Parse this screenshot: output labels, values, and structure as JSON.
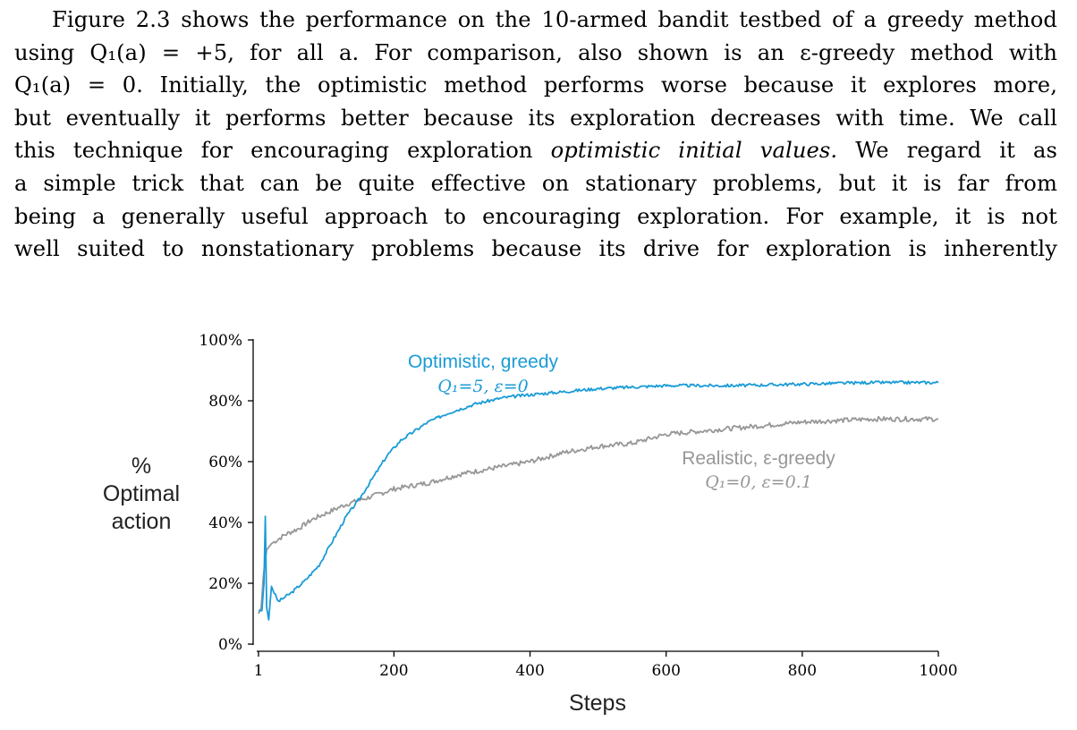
{
  "paragraph": {
    "lines": [
      "Figure 2.3 shows the performance on the 10-armed bandit testbed of a greedy method",
      "using Q₁(a) = +5, for all a. For comparison, also shown is an ε-greedy method with",
      "Q₁(a) = 0. Initially, the optimistic method performs worse because it explores more,",
      "but eventually it performs better because its exploration decreases with time. We call",
      "this technique for encouraging exploration ",
      "optimistic initial values.",
      " We regard it as",
      "a simple trick that can be quite effective on stationary problems, but it is far from",
      "being a generally useful approach to encouraging exploration. For example, it is not",
      "well suited to nonstationary problems because its drive for exploration is inherently"
    ]
  },
  "colors": {
    "optimistic": "#1a9bd7",
    "realistic": "#979797",
    "axis": "#000000"
  },
  "chart_data": {
    "type": "line",
    "xlabel": "Steps",
    "ylabel": [
      "%",
      "Optimal",
      "action"
    ],
    "xlim": [
      1,
      1000
    ],
    "ylim": [
      0,
      100
    ],
    "x_ticks": [
      "1",
      "200",
      "400",
      "600",
      "800",
      "1000"
    ],
    "y_ticks": [
      "0%",
      "20%",
      "40%",
      "60%",
      "80%",
      "100%"
    ],
    "grid": false,
    "series": [
      {
        "name": "Optimistic, greedy",
        "sublabel": "Q₁=5, ε=0",
        "points": [
          [
            1,
            11
          ],
          [
            6,
            11
          ],
          [
            9,
            20
          ],
          [
            11,
            42
          ],
          [
            13,
            12
          ],
          [
            16,
            8
          ],
          [
            20,
            19
          ],
          [
            30,
            14
          ],
          [
            50,
            17
          ],
          [
            70,
            21
          ],
          [
            90,
            26
          ],
          [
            110,
            34
          ],
          [
            130,
            42
          ],
          [
            150,
            48
          ],
          [
            170,
            55
          ],
          [
            190,
            62
          ],
          [
            210,
            67
          ],
          [
            230,
            70
          ],
          [
            250,
            73
          ],
          [
            280,
            76
          ],
          [
            320,
            79
          ],
          [
            360,
            81
          ],
          [
            400,
            82
          ],
          [
            450,
            83
          ],
          [
            500,
            84
          ],
          [
            550,
            84.5
          ],
          [
            600,
            85
          ],
          [
            700,
            85
          ],
          [
            800,
            85.5
          ],
          [
            900,
            86
          ],
          [
            1000,
            86
          ]
        ]
      },
      {
        "name": "Realistic, ε-greedy",
        "sublabel": "Q₁=0, ε=0.1",
        "points": [
          [
            1,
            10
          ],
          [
            5,
            12
          ],
          [
            8,
            22
          ],
          [
            10,
            26
          ],
          [
            13,
            31
          ],
          [
            20,
            33
          ],
          [
            40,
            36
          ],
          [
            60,
            38
          ],
          [
            80,
            41
          ],
          [
            100,
            43
          ],
          [
            130,
            46
          ],
          [
            160,
            48
          ],
          [
            200,
            51
          ],
          [
            250,
            53
          ],
          [
            300,
            56
          ],
          [
            350,
            58
          ],
          [
            400,
            60
          ],
          [
            450,
            63
          ],
          [
            500,
            65
          ],
          [
            550,
            66
          ],
          [
            600,
            69
          ],
          [
            650,
            70
          ],
          [
            700,
            71
          ],
          [
            750,
            72
          ],
          [
            800,
            73
          ],
          [
            850,
            73.5
          ],
          [
            900,
            74
          ],
          [
            950,
            74
          ],
          [
            1000,
            74
          ]
        ]
      }
    ]
  }
}
